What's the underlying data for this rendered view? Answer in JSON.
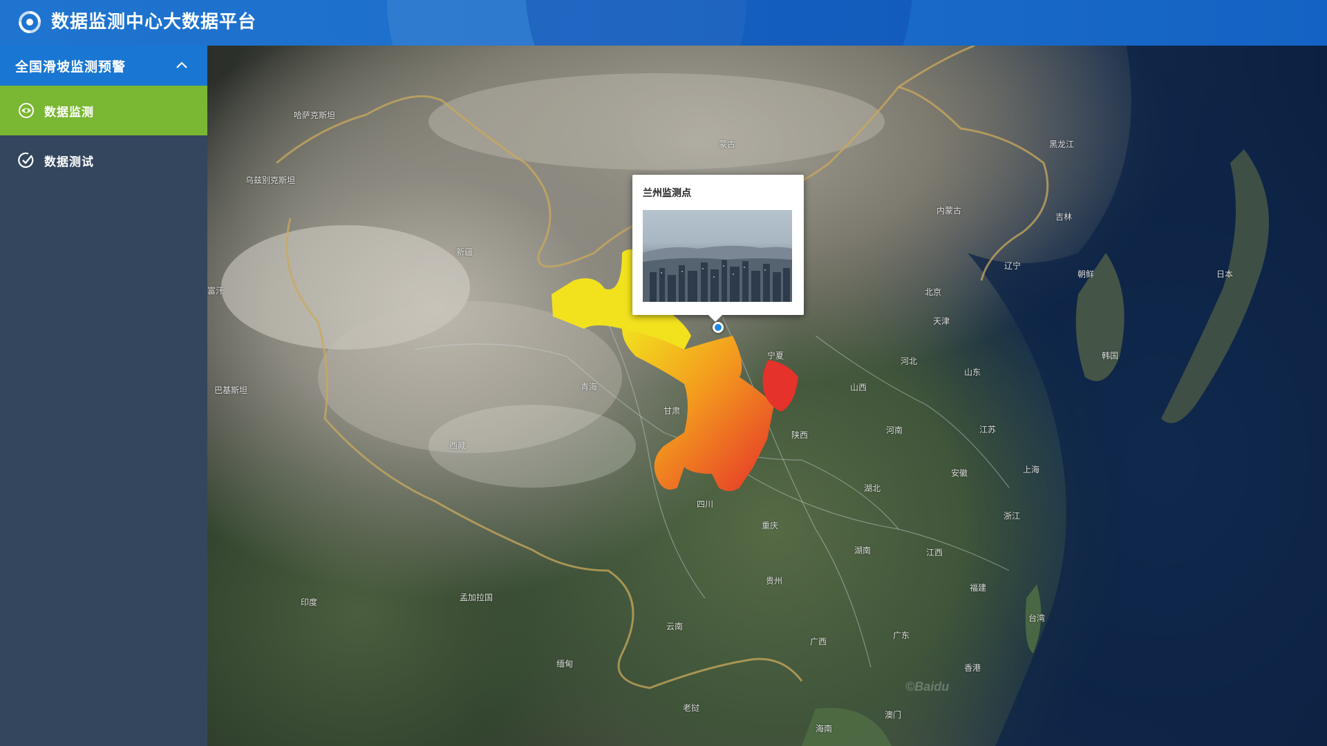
{
  "header": {
    "title": "数据监测中心大数据平台",
    "logo_icon": "platform-logo-icon"
  },
  "sidebar": {
    "group": {
      "label": "全国滑坡监测预警",
      "expanded": true,
      "chevron_icon": "chevron-up-icon"
    },
    "items": [
      {
        "label": "数据监测",
        "icon": "eye-icon",
        "active": true
      },
      {
        "label": "数据测试",
        "icon": "check-circle-icon",
        "active": false
      }
    ]
  },
  "colors": {
    "header": "#1e74cf",
    "sidebar": "#34465e",
    "group_header": "#1976d2",
    "active_item": "#7ab733",
    "region_yellow": "#f2e21e",
    "region_orange": "#f39a1e",
    "region_red": "#e5322a",
    "marker": "#1e88e5"
  },
  "map": {
    "labels": [
      "哈萨克斯坦",
      "蒙古",
      "乌兹别克斯坦",
      "富汗",
      "巴基斯坦",
      "印度",
      "孟加拉国",
      "缅甸",
      "老挝",
      "朝鲜",
      "韩国",
      "日本",
      "内蒙古",
      "吉林",
      "辽宁",
      "北京",
      "天津",
      "河北",
      "山西",
      "山东",
      "陕西",
      "河南",
      "江苏",
      "安徽",
      "上海",
      "浙江",
      "湖北",
      "湖南",
      "四川",
      "重庆",
      "贵州",
      "江西",
      "福建",
      "台湾",
      "广东",
      "广西",
      "云南",
      "海南",
      "澳门",
      "香港",
      "西藏",
      "青海",
      "甘肃",
      "宁夏",
      "新疆",
      "黑龙江"
    ],
    "watermark": "©Baidu"
  },
  "popup": {
    "title": "兰州监测点",
    "photo_icon": "city-photo-image"
  }
}
